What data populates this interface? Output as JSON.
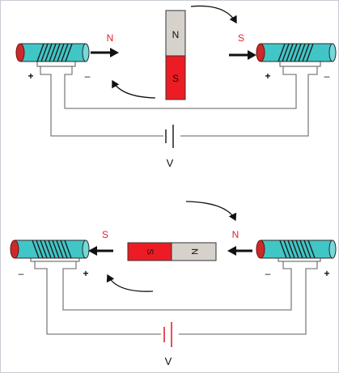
{
  "colors": {
    "coil_body": "#41c6c7",
    "coil_cap": "#cc2a2a",
    "winding": "#1f1f1f",
    "wire": "#7f7f7f",
    "magnet_north": "#d6d2cb",
    "magnet_south": "#ed1c24",
    "pole_label_red": "#e0242a",
    "battery_plate_red": "#e0242a",
    "frame": "#c8ccd4"
  },
  "top_circuit": {
    "left_coil": {
      "pole_label": "N",
      "terminal_plus": "+",
      "terminal_minus": "–"
    },
    "right_coil": {
      "pole_label": "S",
      "terminal_plus": "+",
      "terminal_minus": "–"
    },
    "magnet": {
      "north": "N",
      "south": "S"
    },
    "battery_label": "V"
  },
  "bottom_circuit": {
    "left_coil": {
      "pole_label": "S",
      "terminal_minus": "–",
      "terminal_plus": "+"
    },
    "right_coil": {
      "pole_label": "N",
      "terminal_minus": "–",
      "terminal_plus": "+"
    },
    "magnet": {
      "north": "N",
      "south": "S"
    },
    "battery_label": "V"
  }
}
